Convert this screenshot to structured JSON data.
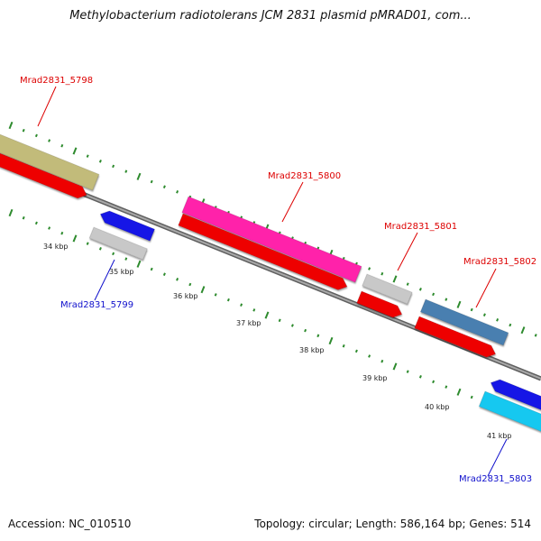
{
  "title": "Methylobacterium radiotolerans JCM 2831 plasmid pMRAD01, com...",
  "footer": {
    "accession": "Accession: NC_010510",
    "topology": "Topology: circular; Length: 586,164 bp; Genes: 514"
  },
  "colors": {
    "backbone": "#7a7a7a",
    "tick": "#2e8b2e",
    "label_forward": "#dd0000",
    "label_reverse": "#1010cc"
  },
  "kbp_ticks": [
    "34 kbp",
    "35 kbp",
    "36 kbp",
    "37 kbp",
    "38 kbp",
    "39 kbp",
    "40 kbp",
    "41 kbp"
  ],
  "genes": [
    {
      "label": "",
      "color": "#c2bb7a",
      "strand": "forward"
    },
    {
      "label": "Mrad2831_5798",
      "color": "#ee0000",
      "strand": "forward"
    },
    {
      "label": "Mrad2831_5799",
      "color": "#1414e6",
      "strand": "reverse"
    },
    {
      "label": "Mrad2831_5799",
      "color": "#c8c8c8",
      "strand": "reverse"
    },
    {
      "label": "Mrad2831_5800",
      "color": "#ff22aa",
      "strand": "forward"
    },
    {
      "label": "Mrad2831_5800",
      "color": "#ee0000",
      "strand": "forward"
    },
    {
      "label": "Mrad2831_5801",
      "color": "#c8c8c8",
      "strand": "forward"
    },
    {
      "label": "Mrad2831_5801",
      "color": "#ee0000",
      "strand": "forward"
    },
    {
      "label": "Mrad2831_5802",
      "color": "#4a7fb0",
      "strand": "forward"
    },
    {
      "label": "Mrad2831_5802",
      "color": "#ee0000",
      "strand": "forward"
    },
    {
      "label": "Mrad2831_5803",
      "color": "#1414e6",
      "strand": "reverse"
    },
    {
      "label": "Mrad2831_5803",
      "color": "#19c8f0",
      "strand": "reverse"
    }
  ],
  "labels": [
    {
      "text": "Mrad2831_5798",
      "strand": "forward"
    },
    {
      "text": "Mrad2831_5800",
      "strand": "forward"
    },
    {
      "text": "Mrad2831_5801",
      "strand": "forward"
    },
    {
      "text": "Mrad2831_5802",
      "strand": "forward"
    },
    {
      "text": "Mrad2831_5799",
      "strand": "reverse"
    },
    {
      "text": "Mrad2831_5803",
      "strand": "reverse"
    }
  ]
}
